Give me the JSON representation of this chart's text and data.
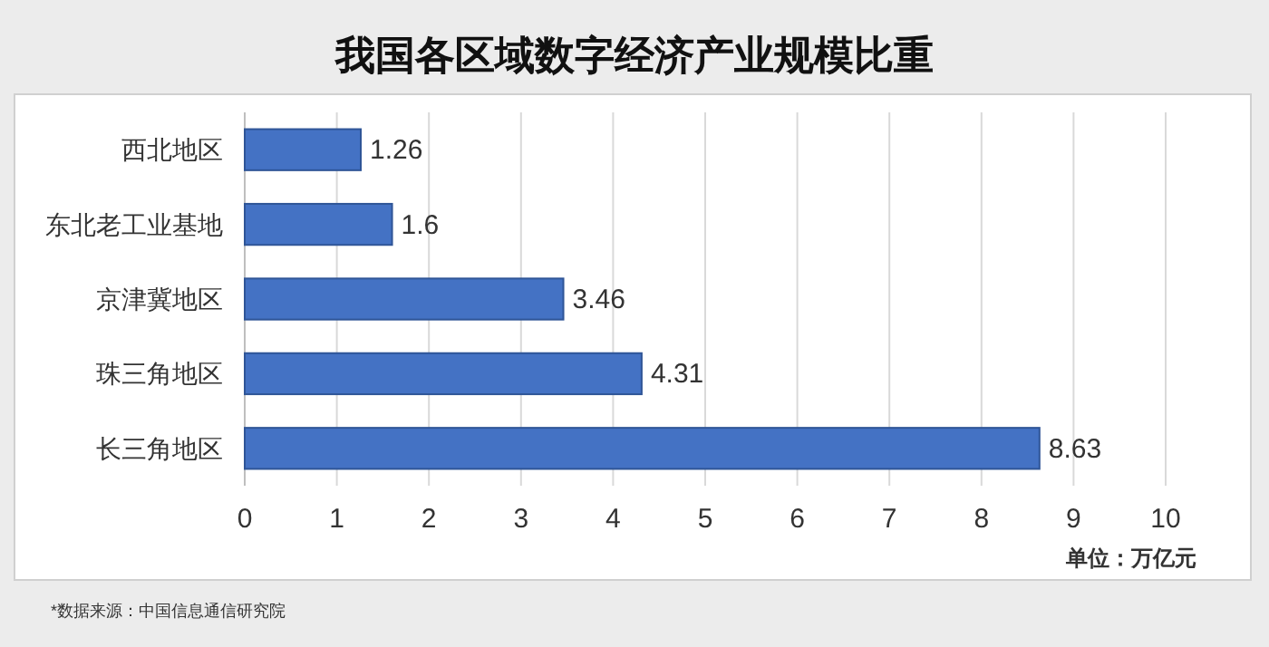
{
  "chart_data": {
    "type": "bar",
    "orientation": "horizontal",
    "title": "我国各区域数字经济产业规模比重",
    "categories": [
      "西北地区",
      "东北老工业基地",
      "京津冀地区",
      "珠三角地区",
      "长三角地区"
    ],
    "values": [
      1.26,
      1.6,
      3.46,
      4.31,
      8.63
    ],
    "color": "#4472c4",
    "xlim": [
      0,
      10
    ],
    "xticks": [
      0,
      1,
      2,
      3,
      4,
      5,
      6,
      7,
      8,
      9,
      10
    ],
    "grid": "x",
    "data_labels": true,
    "xlabel": "单位：万亿元",
    "annotations": [
      "*数据来源：中国信息通信研究院"
    ]
  }
}
